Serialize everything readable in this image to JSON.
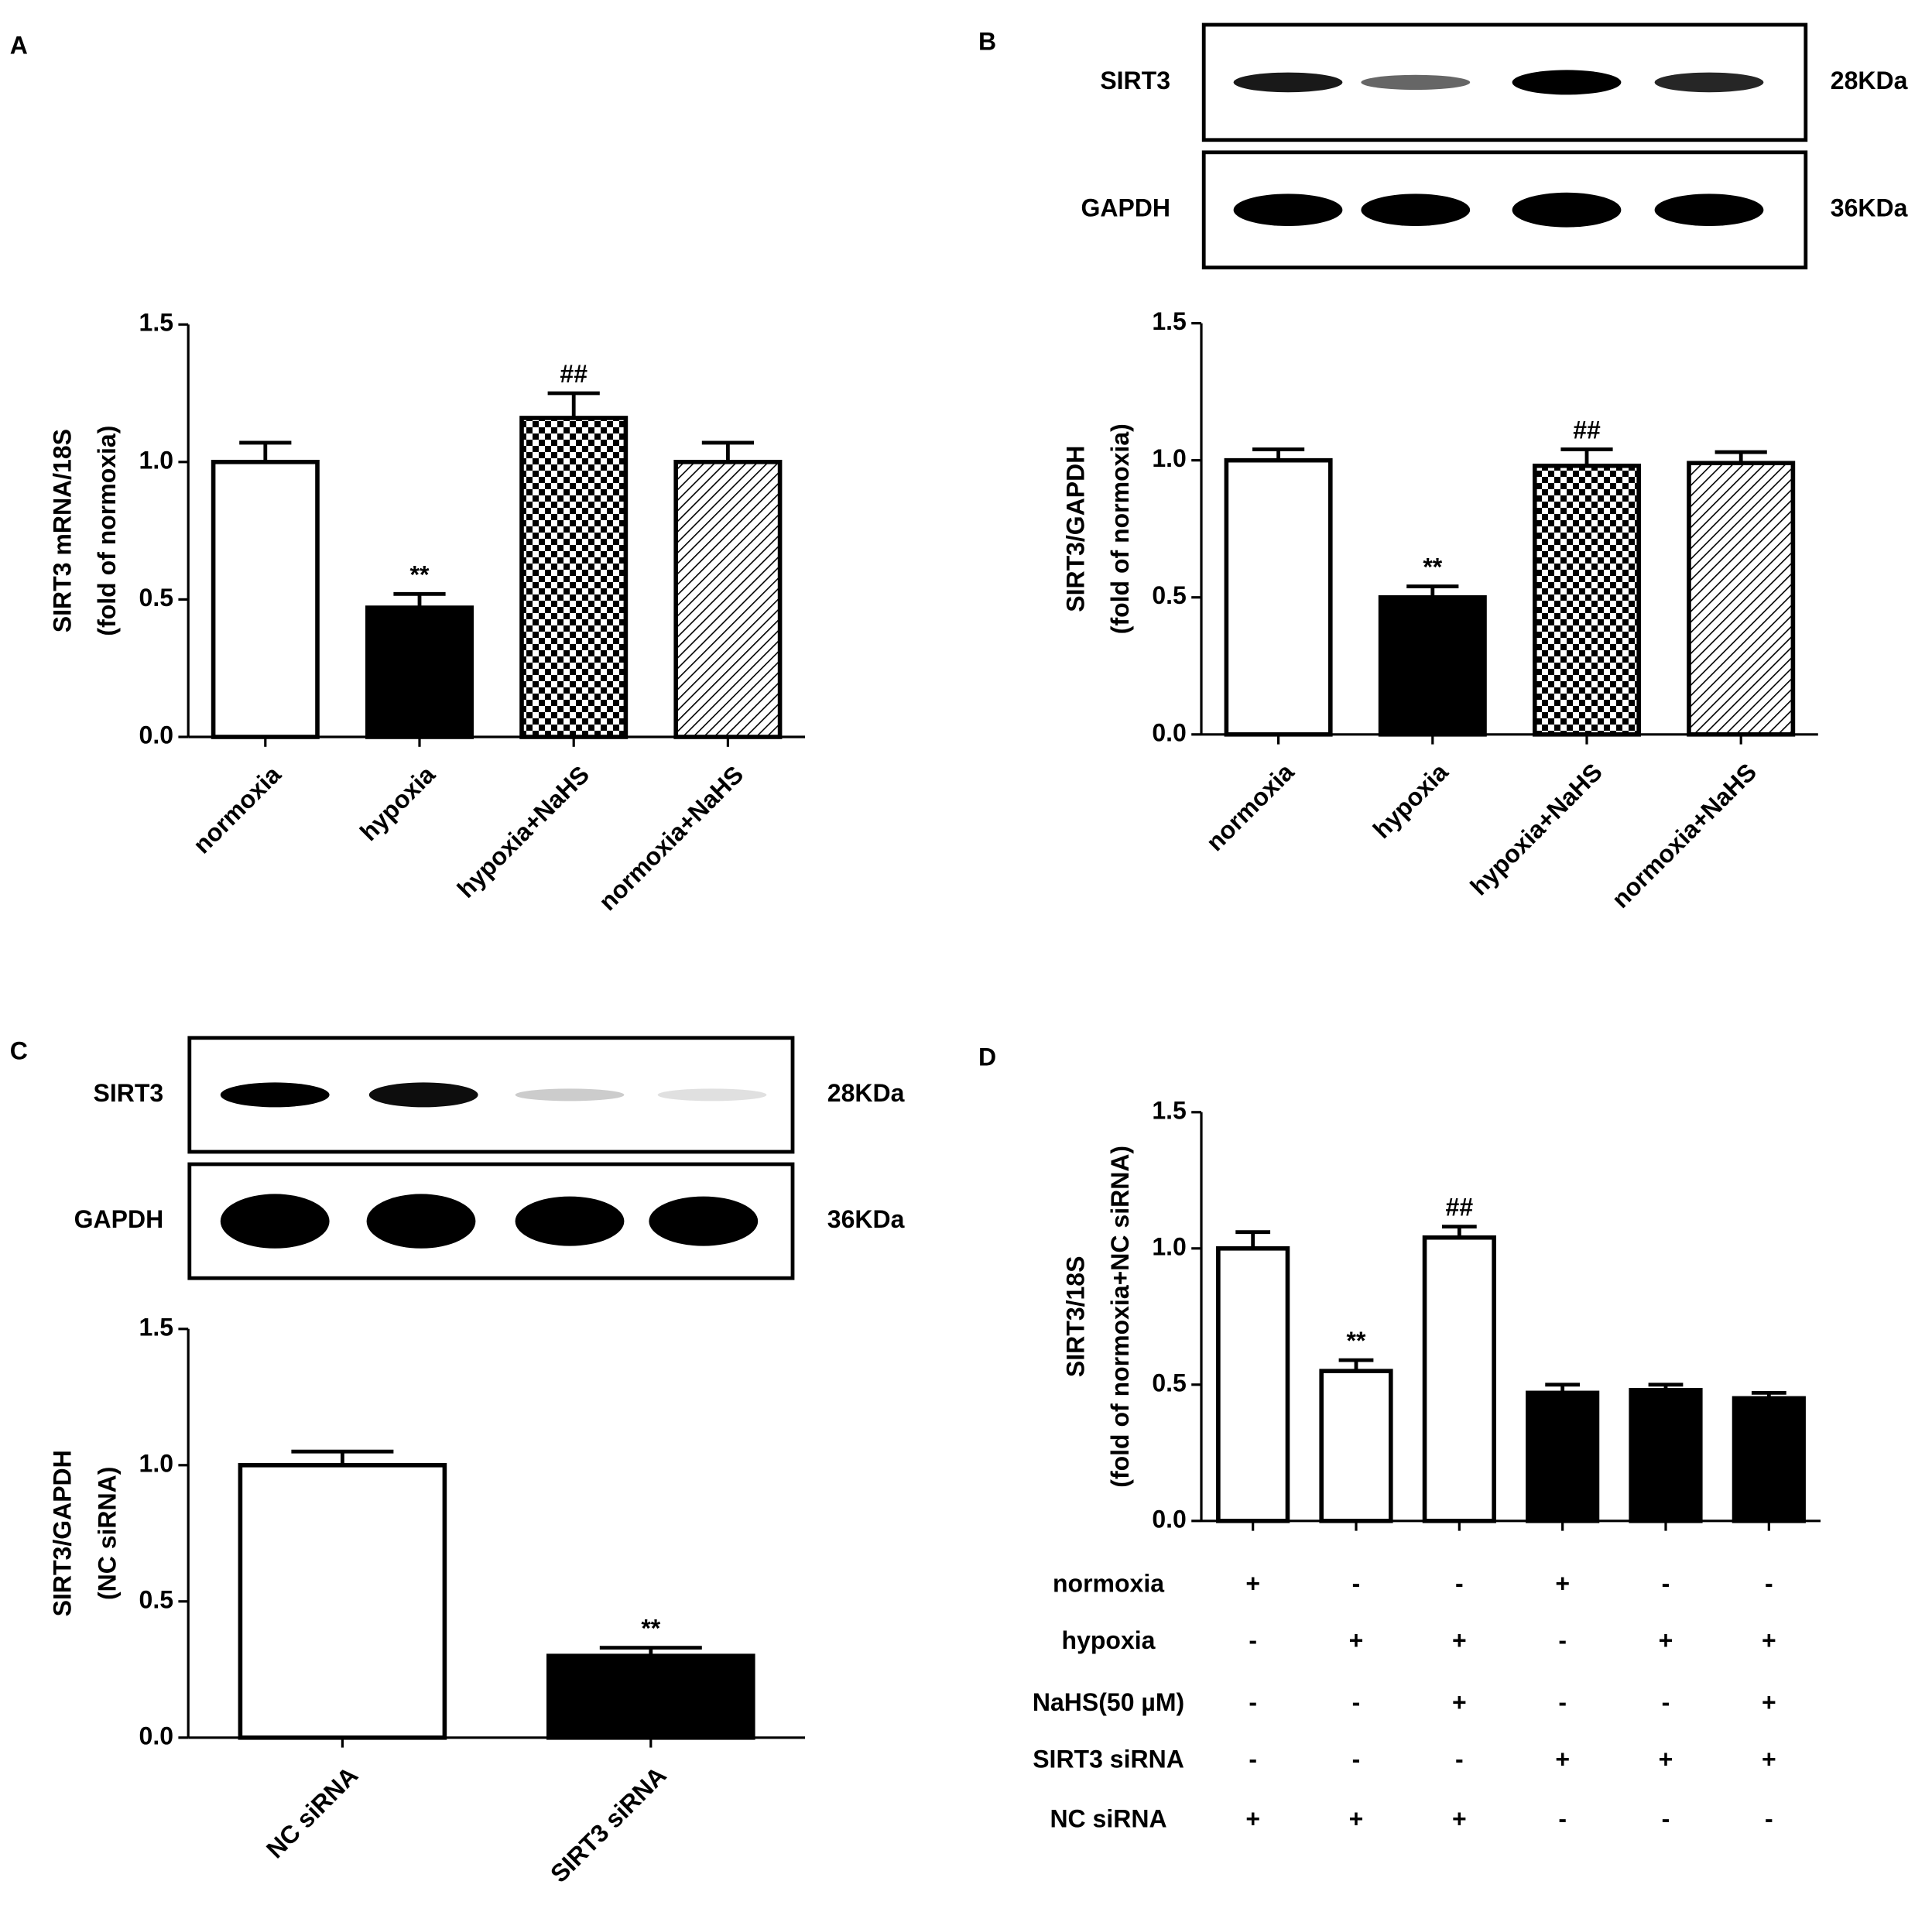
{
  "chart_data": [
    {
      "type": "bar",
      "panel": "A",
      "ylabel": [
        "SIRT3 mRNA/18S",
        "(fold of normoxia)"
      ],
      "categories": [
        "normoxia",
        "hypoxia",
        "hypoxia+NaHS",
        "normoxia+NaHS"
      ],
      "values": [
        1.0,
        0.47,
        1.16,
        1.0
      ],
      "errors": [
        0.07,
        0.05,
        0.09,
        0.07
      ],
      "annotations": [
        null,
        "**",
        "##",
        null
      ],
      "fills": [
        "#ffffff",
        "#000000",
        "checker",
        "hatch"
      ],
      "ylim": [
        0,
        1.5
      ],
      "yticks": [
        {
          "value": 0,
          "label": "0.0"
        },
        0.5,
        {
          "value": 1,
          "label": "1.0"
        },
        1.5
      ]
    },
    {
      "type": "bar",
      "panel": "B",
      "blot": {
        "rows": [
          {
            "label": "SIRT3",
            "size": "28KDa"
          },
          {
            "label": "GAPDH",
            "size": "36KDa"
          }
        ]
      },
      "ylabel": [
        "SIRT3/GAPDH",
        "(fold of normoxia)"
      ],
      "categories": [
        "normoxia",
        "hypoxia",
        "hypoxia+NaHS",
        "normoxia+NaHS"
      ],
      "values": [
        1.0,
        0.5,
        0.98,
        0.99
      ],
      "errors": [
        0.04,
        0.04,
        0.06,
        0.04
      ],
      "annotations": [
        null,
        "**",
        "##",
        null
      ],
      "fills": [
        "#ffffff",
        "#000000",
        "checker",
        "hatch"
      ],
      "ylim": [
        0,
        1.5
      ],
      "yticks": [
        {
          "value": 0,
          "label": "0.0"
        },
        0.5,
        {
          "value": 1,
          "label": "1.0"
        },
        1.5
      ]
    },
    {
      "type": "bar",
      "panel": "C",
      "blot": {
        "rows": [
          {
            "label": "SIRT3",
            "size": "28KDa"
          },
          {
            "label": "GAPDH",
            "size": "36KDa"
          }
        ]
      },
      "ylabel": [
        "SIRT3/GAPDH",
        "(NC siRNA)"
      ],
      "categories": [
        "NC siRNA",
        "SIRT3 siRNA"
      ],
      "values": [
        1.0,
        0.3
      ],
      "errors": [
        0.05,
        0.03
      ],
      "annotations": [
        null,
        "**"
      ],
      "fills": [
        "#ffffff",
        "#000000"
      ],
      "ylim": [
        0,
        1.5
      ],
      "yticks": [
        {
          "value": 0,
          "label": "0.0"
        },
        0.5,
        {
          "value": 1,
          "label": "1.0"
        },
        1.5
      ]
    },
    {
      "type": "bar",
      "panel": "D",
      "ylabel": [
        "SIRT3/18S",
        "(fold of normoxia+NC siRNA)"
      ],
      "values": [
        1.0,
        0.55,
        1.04,
        0.47,
        0.48,
        0.45
      ],
      "errors": [
        0.06,
        0.04,
        0.04,
        0.03,
        0.02,
        0.02
      ],
      "annotations": [
        null,
        "**",
        "##",
        null,
        null,
        null
      ],
      "fills": [
        "#ffffff",
        "#ffffff",
        "#ffffff",
        "#000000",
        "#000000",
        "#000000"
      ],
      "conditions": [
        {
          "label": "normoxia",
          "signs": [
            "+",
            "-",
            "-",
            "+",
            "-",
            "-"
          ]
        },
        {
          "label": "hypoxia",
          "signs": [
            "-",
            "+",
            "+",
            "-",
            "+",
            "+"
          ]
        },
        {
          "label": "NaHS(50 µM)",
          "signs": [
            "-",
            "-",
            "+",
            "-",
            "-",
            "+"
          ]
        },
        {
          "label": "SIRT3 siRNA",
          "signs": [
            "-",
            "-",
            "-",
            "+",
            "+",
            "+"
          ]
        },
        {
          "label": "NC siRNA",
          "signs": [
            "+",
            "+",
            "+",
            "-",
            "-",
            "-"
          ]
        }
      ],
      "ylim": [
        0,
        1.5
      ],
      "yticks": [
        {
          "value": 0,
          "label": "0.0"
        },
        0.5,
        {
          "value": 1,
          "label": "1.0"
        },
        1.5
      ]
    }
  ]
}
